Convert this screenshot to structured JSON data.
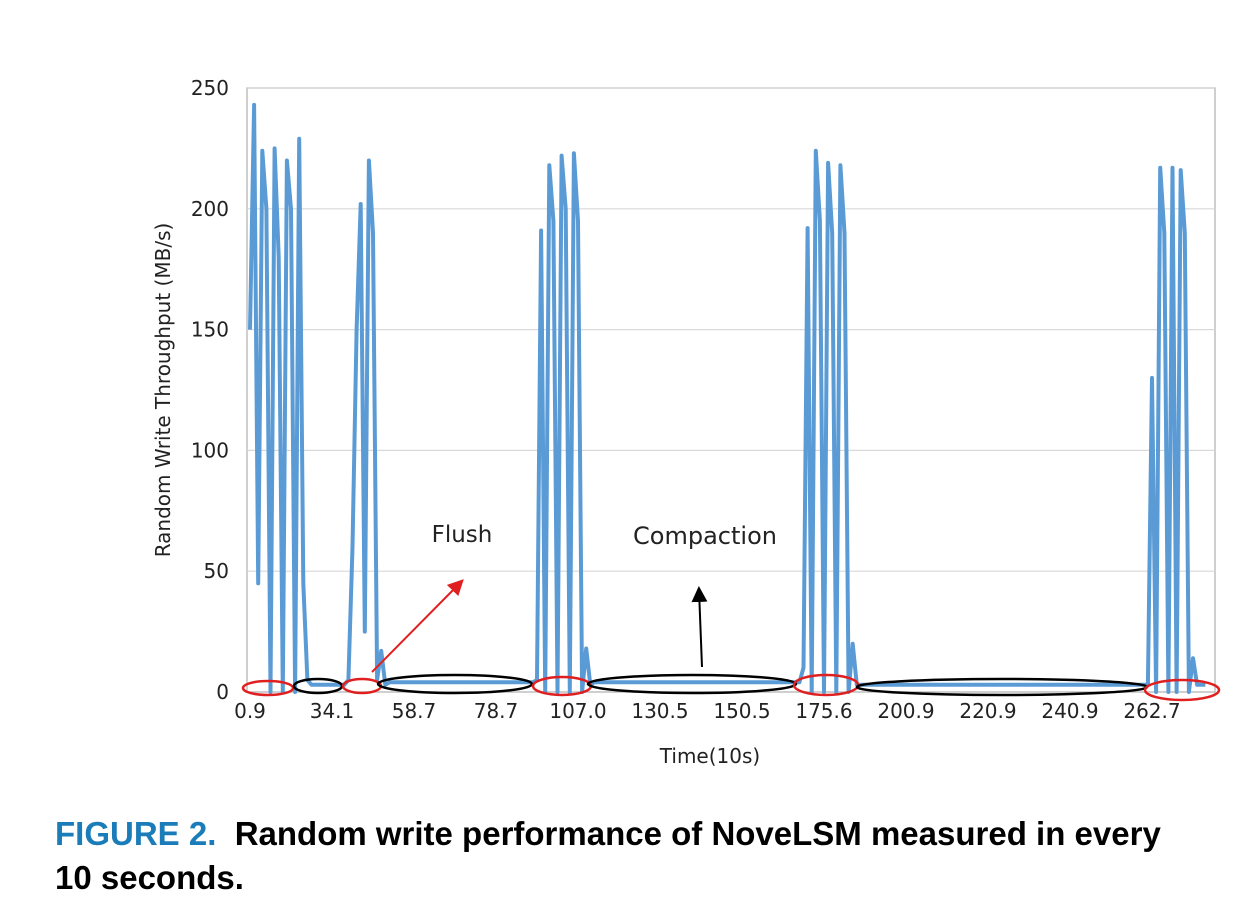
{
  "chart_data": {
    "type": "line",
    "y_label": "Random  Write Throughput (MB/s)",
    "x_label": "Time(10s)",
    "caption_label": "FIGURE 2.",
    "caption": "Random write performance of NoveLSM measured in every 10 seconds.",
    "annotations": [
      "Flush",
      "Compaction"
    ],
    "color": "#5b9bd5",
    "grid": true,
    "ylim": [
      0,
      250
    ],
    "yticks": [
      0,
      50,
      100,
      150,
      200,
      250
    ],
    "categories": [
      "0.9",
      null,
      null,
      null,
      null,
      null,
      null,
      null,
      null,
      null,
      null,
      null,
      null,
      null,
      null,
      null,
      null,
      null,
      null,
      null,
      "34.1",
      null,
      null,
      null,
      null,
      null,
      null,
      null,
      null,
      null,
      null,
      null,
      null,
      null,
      null,
      null,
      null,
      null,
      null,
      null,
      "58.7",
      null,
      null,
      null,
      null,
      null,
      null,
      null,
      null,
      null,
      null,
      null,
      null,
      null,
      null,
      null,
      null,
      null,
      null,
      null,
      "78.7",
      null,
      null,
      null,
      null,
      null,
      null,
      null,
      null,
      null,
      null,
      null,
      null,
      null,
      null,
      null,
      null,
      null,
      null,
      null,
      "107.0",
      null,
      null,
      null,
      null,
      null,
      null,
      null,
      null,
      null,
      null,
      null,
      null,
      null,
      null,
      null,
      null,
      null,
      null,
      null,
      "130.5",
      null,
      null,
      null,
      null,
      null,
      null,
      null,
      null,
      null,
      null,
      null,
      null,
      null,
      null,
      null,
      null,
      null,
      null,
      null,
      "150.5",
      null,
      null,
      null,
      null,
      null,
      null,
      null,
      null,
      null,
      null,
      null,
      null,
      null,
      null,
      null,
      null,
      null,
      null,
      null,
      "175.6",
      null,
      null,
      null,
      null,
      null,
      null,
      null,
      null,
      null,
      null,
      null,
      null,
      null,
      null,
      null,
      null,
      null,
      null,
      null,
      "200.9",
      null,
      null,
      null,
      null,
      null,
      null,
      null,
      null,
      null,
      null,
      null,
      null,
      null,
      null,
      null,
      null,
      null,
      null,
      null,
      "220.9",
      null,
      null,
      null,
      null,
      null,
      null,
      null,
      null,
      null,
      null,
      null,
      null,
      null,
      null,
      null,
      null,
      null,
      null,
      null,
      "240.9",
      null,
      null,
      null,
      null,
      null,
      null,
      null,
      null,
      null,
      null,
      null,
      null,
      null,
      null,
      null,
      null,
      null,
      null,
      null,
      "262.7",
      null,
      null,
      null,
      null,
      null,
      null,
      null,
      null,
      null,
      null,
      null,
      null,
      null
    ],
    "values": [
      150,
      243,
      45,
      224,
      200,
      0,
      225,
      180,
      0,
      220,
      200,
      0,
      229,
      45,
      5,
      3,
      3,
      3,
      3,
      3,
      3,
      3,
      3,
      3,
      5,
      60,
      150,
      202,
      25,
      220,
      190,
      5,
      17,
      3,
      4,
      4,
      4,
      4,
      4,
      4,
      4,
      4,
      4,
      4,
      4,
      4,
      4,
      4,
      4,
      4,
      4,
      4,
      4,
      4,
      4,
      4,
      4,
      4,
      4,
      4,
      4,
      4,
      4,
      4,
      4,
      4,
      4,
      4,
      4,
      4,
      5,
      191,
      0,
      218,
      195,
      0,
      222,
      200,
      0,
      223,
      195,
      0,
      18,
      3,
      4,
      4,
      4,
      4,
      4,
      4,
      4,
      4,
      4,
      4,
      4,
      4,
      4,
      4,
      4,
      4,
      4,
      4,
      4,
      4,
      4,
      4,
      4,
      4,
      4,
      4,
      4,
      4,
      4,
      4,
      4,
      4,
      4,
      4,
      4,
      4,
      4,
      4,
      4,
      4,
      4,
      4,
      4,
      4,
      4,
      4,
      4,
      4,
      4,
      4,
      4,
      10,
      192,
      0,
      224,
      195,
      0,
      219,
      190,
      0,
      218,
      190,
      0,
      20,
      3,
      3,
      3,
      3,
      3,
      3,
      3,
      3,
      3,
      3,
      3,
      3,
      3,
      3,
      3,
      3,
      3,
      3,
      3,
      3,
      3,
      3,
      3,
      3,
      3,
      3,
      3,
      3,
      3,
      3,
      3,
      3,
      3,
      3,
      3,
      3,
      3,
      3,
      3,
      3,
      3,
      3,
      3,
      3,
      3,
      3,
      3,
      3,
      3,
      3,
      3,
      3,
      3,
      3,
      3,
      3,
      3,
      3,
      3,
      3,
      3,
      3,
      3,
      3,
      3,
      3,
      3,
      3,
      3,
      3,
      3,
      3,
      130,
      0,
      217,
      190,
      0,
      217,
      0,
      216,
      190,
      0,
      14,
      3,
      3,
      3
    ]
  }
}
